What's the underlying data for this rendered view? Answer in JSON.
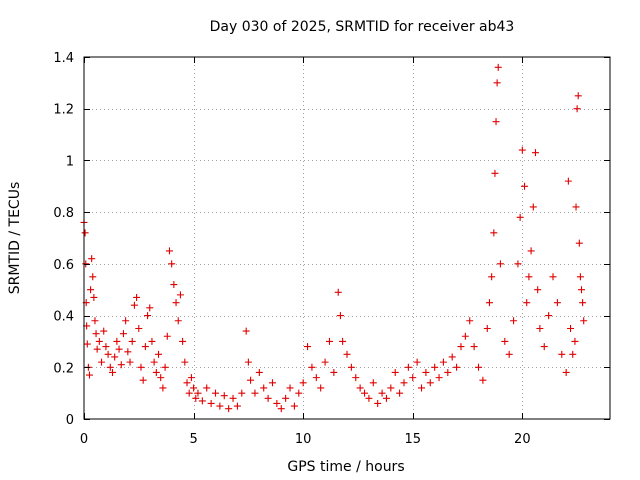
{
  "chart_data": {
    "type": "scatter",
    "title": "Day 030 of 2025, SRMTID for receiver ab43",
    "xlabel": "GPS time / hours",
    "ylabel": "SRMTID / TECUs",
    "xlim": [
      0,
      24
    ],
    "ylim": [
      0,
      1.4
    ],
    "xticks": [
      0,
      5,
      10,
      15,
      20
    ],
    "xtick_labels": [
      "0",
      "5",
      "10",
      "15",
      "20"
    ],
    "yticks": [
      0,
      0.2,
      0.4,
      0.6,
      0.8,
      1.0,
      1.2,
      1.4
    ],
    "ytick_labels": [
      "0",
      "0.2",
      "0.4",
      "0.6",
      "0.8",
      "1",
      "1.2",
      "1.4"
    ],
    "grid": true,
    "marker": "+",
    "color": "#e00000",
    "series": [
      {
        "name": "SRMTID",
        "points": [
          [
            0.0,
            0.76
          ],
          [
            0.05,
            0.72
          ],
          [
            0.08,
            0.6
          ],
          [
            0.1,
            0.45
          ],
          [
            0.12,
            0.36
          ],
          [
            0.15,
            0.29
          ],
          [
            0.2,
            0.2
          ],
          [
            0.25,
            0.17
          ],
          [
            0.3,
            0.5
          ],
          [
            0.35,
            0.62
          ],
          [
            0.4,
            0.55
          ],
          [
            0.45,
            0.47
          ],
          [
            0.5,
            0.38
          ],
          [
            0.55,
            0.33
          ],
          [
            0.6,
            0.27
          ],
          [
            0.7,
            0.3
          ],
          [
            0.8,
            0.22
          ],
          [
            0.9,
            0.34
          ],
          [
            1.0,
            0.28
          ],
          [
            1.1,
            0.25
          ],
          [
            1.2,
            0.2
          ],
          [
            1.3,
            0.18
          ],
          [
            1.4,
            0.24
          ],
          [
            1.5,
            0.3
          ],
          [
            1.6,
            0.27
          ],
          [
            1.7,
            0.21
          ],
          [
            1.8,
            0.33
          ],
          [
            1.9,
            0.38
          ],
          [
            2.0,
            0.26
          ],
          [
            2.1,
            0.22
          ],
          [
            2.2,
            0.3
          ],
          [
            2.3,
            0.44
          ],
          [
            2.4,
            0.47
          ],
          [
            2.5,
            0.35
          ],
          [
            2.6,
            0.2
          ],
          [
            2.7,
            0.15
          ],
          [
            2.8,
            0.28
          ],
          [
            2.9,
            0.4
          ],
          [
            3.0,
            0.43
          ],
          [
            3.1,
            0.3
          ],
          [
            3.2,
            0.22
          ],
          [
            3.3,
            0.18
          ],
          [
            3.4,
            0.25
          ],
          [
            3.5,
            0.16
          ],
          [
            3.6,
            0.12
          ],
          [
            3.7,
            0.2
          ],
          [
            3.8,
            0.32
          ],
          [
            3.9,
            0.65
          ],
          [
            4.0,
            0.6
          ],
          [
            4.1,
            0.52
          ],
          [
            4.2,
            0.45
          ],
          [
            4.3,
            0.38
          ],
          [
            4.4,
            0.48
          ],
          [
            4.5,
            0.3
          ],
          [
            4.6,
            0.22
          ],
          [
            4.7,
            0.14
          ],
          [
            4.8,
            0.1
          ],
          [
            4.9,
            0.16
          ],
          [
            5.0,
            0.12
          ],
          [
            5.1,
            0.08
          ],
          [
            5.2,
            0.1
          ],
          [
            5.4,
            0.07
          ],
          [
            5.6,
            0.12
          ],
          [
            5.8,
            0.06
          ],
          [
            6.0,
            0.1
          ],
          [
            6.2,
            0.05
          ],
          [
            6.4,
            0.09
          ],
          [
            6.6,
            0.04
          ],
          [
            6.8,
            0.08
          ],
          [
            7.0,
            0.05
          ],
          [
            7.2,
            0.1
          ],
          [
            7.4,
            0.34
          ],
          [
            7.5,
            0.22
          ],
          [
            7.6,
            0.15
          ],
          [
            7.8,
            0.1
          ],
          [
            8.0,
            0.18
          ],
          [
            8.2,
            0.12
          ],
          [
            8.4,
            0.08
          ],
          [
            8.6,
            0.14
          ],
          [
            8.8,
            0.06
          ],
          [
            9.0,
            0.04
          ],
          [
            9.2,
            0.08
          ],
          [
            9.4,
            0.12
          ],
          [
            9.6,
            0.05
          ],
          [
            9.8,
            0.1
          ],
          [
            10.0,
            0.14
          ],
          [
            10.2,
            0.28
          ],
          [
            10.4,
            0.2
          ],
          [
            10.6,
            0.16
          ],
          [
            10.8,
            0.12
          ],
          [
            11.0,
            0.22
          ],
          [
            11.2,
            0.3
          ],
          [
            11.4,
            0.18
          ],
          [
            11.6,
            0.49
          ],
          [
            11.7,
            0.4
          ],
          [
            11.8,
            0.3
          ],
          [
            12.0,
            0.25
          ],
          [
            12.2,
            0.2
          ],
          [
            12.4,
            0.16
          ],
          [
            12.6,
            0.12
          ],
          [
            12.8,
            0.1
          ],
          [
            13.0,
            0.08
          ],
          [
            13.2,
            0.14
          ],
          [
            13.4,
            0.06
          ],
          [
            13.6,
            0.1
          ],
          [
            13.8,
            0.08
          ],
          [
            14.0,
            0.12
          ],
          [
            14.2,
            0.18
          ],
          [
            14.4,
            0.1
          ],
          [
            14.6,
            0.14
          ],
          [
            14.8,
            0.2
          ],
          [
            15.0,
            0.16
          ],
          [
            15.2,
            0.22
          ],
          [
            15.4,
            0.12
          ],
          [
            15.6,
            0.18
          ],
          [
            15.8,
            0.14
          ],
          [
            16.0,
            0.2
          ],
          [
            16.2,
            0.16
          ],
          [
            16.4,
            0.22
          ],
          [
            16.6,
            0.18
          ],
          [
            16.8,
            0.24
          ],
          [
            17.0,
            0.2
          ],
          [
            17.2,
            0.28
          ],
          [
            17.4,
            0.32
          ],
          [
            17.6,
            0.38
          ],
          [
            17.8,
            0.28
          ],
          [
            18.0,
            0.2
          ],
          [
            18.2,
            0.15
          ],
          [
            18.4,
            0.35
          ],
          [
            18.5,
            0.45
          ],
          [
            18.6,
            0.55
          ],
          [
            18.7,
            0.72
          ],
          [
            18.75,
            0.95
          ],
          [
            18.8,
            1.15
          ],
          [
            18.85,
            1.3
          ],
          [
            18.9,
            1.36
          ],
          [
            19.0,
            0.6
          ],
          [
            19.2,
            0.3
          ],
          [
            19.4,
            0.25
          ],
          [
            19.6,
            0.38
          ],
          [
            19.8,
            0.6
          ],
          [
            19.9,
            0.78
          ],
          [
            20.0,
            1.04
          ],
          [
            20.1,
            0.9
          ],
          [
            20.2,
            0.45
          ],
          [
            20.3,
            0.55
          ],
          [
            20.4,
            0.65
          ],
          [
            20.5,
            0.82
          ],
          [
            20.6,
            1.03
          ],
          [
            20.7,
            0.5
          ],
          [
            20.8,
            0.35
          ],
          [
            21.0,
            0.28
          ],
          [
            21.2,
            0.4
          ],
          [
            21.4,
            0.55
          ],
          [
            21.6,
            0.45
          ],
          [
            21.8,
            0.25
          ],
          [
            22.0,
            0.18
          ],
          [
            22.1,
            0.92
          ],
          [
            22.2,
            0.35
          ],
          [
            22.3,
            0.25
          ],
          [
            22.4,
            0.3
          ],
          [
            22.45,
            0.82
          ],
          [
            22.5,
            1.2
          ],
          [
            22.55,
            1.25
          ],
          [
            22.6,
            0.68
          ],
          [
            22.65,
            0.55
          ],
          [
            22.7,
            0.5
          ],
          [
            22.75,
            0.45
          ],
          [
            22.8,
            0.38
          ]
        ]
      }
    ]
  }
}
